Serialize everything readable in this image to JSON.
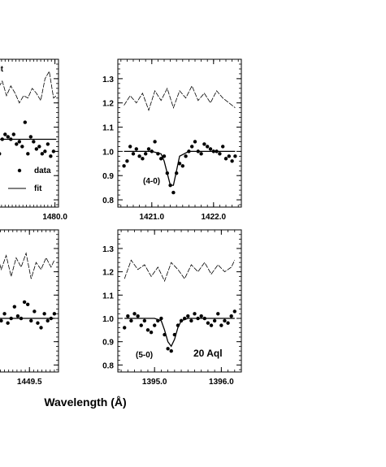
{
  "figure": {
    "xlabel": "Wavelength (Å)"
  },
  "chart_data": [
    {
      "type": "scatter",
      "id": "top-left",
      "xlabel": "",
      "ylabel": "",
      "xlim": [
        1479.0,
        1480.05
      ],
      "ylim": [
        0.77,
        1.38
      ],
      "xticks": [
        1480.0
      ],
      "xtick_labels": [
        "1480.0"
      ],
      "yticks": [],
      "ytick_labels": [],
      "annotations": [
        "data",
        "fit"
      ],
      "legend_partial_top": "it",
      "series": [
        {
          "name": "data",
          "kind": "points",
          "x": [
            1479.18,
            1479.22,
            1479.26,
            1479.3,
            1479.34,
            1479.38,
            1479.42,
            1479.46,
            1479.5,
            1479.54,
            1479.58,
            1479.62,
            1479.66,
            1479.7,
            1479.74,
            1479.78,
            1479.82,
            1479.86,
            1479.9,
            1479.94,
            1479.98
          ],
          "y": [
            1.02,
            0.99,
            1.05,
            1.07,
            1.06,
            1.05,
            1.07,
            1.03,
            1.04,
            1.02,
            1.12,
            0.99,
            1.06,
            1.04,
            1.01,
            1.02,
            0.99,
            1.0,
            1.03,
            0.98,
            1.0
          ]
        },
        {
          "name": "fit",
          "kind": "line",
          "x": [
            1479.14,
            1480.02
          ],
          "y": [
            1.05,
            1.05
          ]
        },
        {
          "name": "spectrum",
          "kind": "line",
          "x": [
            1479.14,
            1479.2,
            1479.26,
            1479.32,
            1479.38,
            1479.44,
            1479.5,
            1479.56,
            1479.62,
            1479.68,
            1479.74,
            1479.8,
            1479.86,
            1479.92,
            1479.98,
            1480.02
          ],
          "y": [
            1.22,
            1.26,
            1.29,
            1.23,
            1.27,
            1.24,
            1.2,
            1.23,
            1.22,
            1.26,
            1.24,
            1.21,
            1.3,
            1.33,
            1.22,
            1.23
          ]
        }
      ]
    },
    {
      "type": "scatter",
      "id": "top-right",
      "xlabel": "",
      "ylabel": "",
      "xlim": [
        1420.45,
        1422.45
      ],
      "ylim": [
        0.77,
        1.38
      ],
      "xticks": [
        1421.0,
        1422.0
      ],
      "xtick_labels": [
        "1421.0",
        "1422.0"
      ],
      "yticks": [
        0.8,
        0.9,
        1.0,
        1.1,
        1.2,
        1.3
      ],
      "ytick_labels": [
        "0.8",
        "0.9",
        "1.0",
        "1.1",
        "1.2",
        "1.3"
      ],
      "annotations": [
        "(4-0)"
      ],
      "series": [
        {
          "name": "data",
          "kind": "points",
          "x": [
            1420.55,
            1420.6,
            1420.65,
            1420.7,
            1420.75,
            1420.8,
            1420.85,
            1420.9,
            1420.95,
            1421.0,
            1421.05,
            1421.1,
            1421.15,
            1421.2,
            1421.25,
            1421.3,
            1421.35,
            1421.4,
            1421.45,
            1421.5,
            1421.55,
            1421.6,
            1421.65,
            1421.7,
            1421.75,
            1421.8,
            1421.85,
            1421.9,
            1421.95,
            1422.0,
            1422.05,
            1422.1,
            1422.15,
            1422.2,
            1422.25,
            1422.3,
            1422.35
          ],
          "y": [
            0.94,
            0.96,
            1.02,
            0.99,
            1.01,
            0.98,
            0.97,
            0.99,
            1.01,
            1.0,
            1.04,
            0.99,
            0.97,
            0.98,
            0.91,
            0.86,
            0.83,
            0.91,
            0.95,
            0.94,
            0.98,
            1.0,
            1.02,
            1.04,
            1.0,
            0.99,
            1.03,
            1.02,
            1.01,
            1.0,
            1.0,
            0.99,
            1.02,
            0.97,
            0.98,
            0.96,
            0.98
          ]
        },
        {
          "name": "fit",
          "kind": "line",
          "x": [
            1420.55,
            1421.0,
            1421.15,
            1421.2,
            1421.25,
            1421.3,
            1421.35,
            1421.4,
            1421.45,
            1421.6,
            1422.35
          ],
          "y": [
            1.0,
            1.0,
            0.99,
            0.96,
            0.91,
            0.86,
            0.86,
            0.92,
            0.98,
            1.0,
            1.0
          ]
        },
        {
          "name": "spectrum",
          "kind": "line",
          "x": [
            1420.55,
            1420.65,
            1420.75,
            1420.85,
            1420.95,
            1421.05,
            1421.15,
            1421.25,
            1421.35,
            1421.45,
            1421.55,
            1421.65,
            1421.75,
            1421.85,
            1421.95,
            1422.05,
            1422.15,
            1422.25,
            1422.35
          ],
          "y": [
            1.19,
            1.23,
            1.2,
            1.24,
            1.17,
            1.25,
            1.21,
            1.26,
            1.18,
            1.25,
            1.22,
            1.27,
            1.21,
            1.24,
            1.2,
            1.25,
            1.22,
            1.2,
            1.18
          ]
        }
      ]
    },
    {
      "type": "scatter",
      "id": "bottom-left",
      "xlabel": "",
      "ylabel": "",
      "xlim": [
        1448.95,
        1449.85
      ],
      "ylim": [
        0.77,
        1.38
      ],
      "xticks": [
        1449.5
      ],
      "xtick_labels": [
        "1449.5"
      ],
      "yticks": [],
      "ytick_labels": [],
      "annotations": [],
      "series": [
        {
          "name": "data",
          "kind": "points",
          "x": [
            1449.0,
            1449.04,
            1449.08,
            1449.12,
            1449.16,
            1449.2,
            1449.24,
            1449.28,
            1449.32,
            1449.36,
            1449.4,
            1449.44,
            1449.48,
            1449.52,
            1449.56,
            1449.6,
            1449.64,
            1449.68,
            1449.72,
            1449.76,
            1449.8
          ],
          "y": [
            1.02,
            0.99,
            1.0,
            1.03,
            0.99,
            1.02,
            0.98,
            1.0,
            1.05,
            1.01,
            1.0,
            1.07,
            1.06,
            0.99,
            1.03,
            0.98,
            0.96,
            1.02,
            0.99,
            1.0,
            1.02
          ]
        },
        {
          "name": "fit",
          "kind": "line",
          "x": [
            1448.98,
            1449.0,
            1449.04,
            1449.08,
            1449.12,
            1449.8
          ],
          "y": [
            0.88,
            0.93,
            0.98,
            1.0,
            1.0,
            1.0
          ]
        },
        {
          "name": "spectrum",
          "kind": "line",
          "x": [
            1448.98,
            1449.04,
            1449.1,
            1449.16,
            1449.22,
            1449.28,
            1449.34,
            1449.4,
            1449.46,
            1449.52,
            1449.58,
            1449.64,
            1449.7,
            1449.76,
            1449.8
          ],
          "y": [
            1.26,
            1.23,
            1.29,
            1.21,
            1.27,
            1.18,
            1.26,
            1.22,
            1.28,
            1.17,
            1.24,
            1.21,
            1.26,
            1.22,
            1.25
          ]
        }
      ]
    },
    {
      "type": "scatter",
      "id": "bottom-right",
      "xlabel": "",
      "ylabel": "",
      "xlim": [
        1394.45,
        1396.3
      ],
      "ylim": [
        0.77,
        1.38
      ],
      "xticks": [
        1395.0,
        1396.0
      ],
      "xtick_labels": [
        "1395.0",
        "1396.0"
      ],
      "yticks": [
        0.8,
        0.9,
        1.0,
        1.1,
        1.2,
        1.3
      ],
      "ytick_labels": [
        "0.8",
        "0.9",
        "1.0",
        "1.1",
        "1.2",
        "1.3"
      ],
      "annotations": [
        "(5-0)",
        "20 Aql"
      ],
      "series": [
        {
          "name": "data",
          "kind": "points",
          "x": [
            1394.55,
            1394.6,
            1394.65,
            1394.7,
            1394.75,
            1394.8,
            1394.85,
            1394.9,
            1394.95,
            1395.0,
            1395.05,
            1395.1,
            1395.15,
            1395.2,
            1395.25,
            1395.3,
            1395.35,
            1395.4,
            1395.45,
            1395.5,
            1395.55,
            1395.6,
            1395.65,
            1395.7,
            1395.75,
            1395.8,
            1395.85,
            1395.9,
            1395.95,
            1396.0,
            1396.05,
            1396.1,
            1396.15,
            1396.2
          ],
          "y": [
            0.96,
            1.01,
            0.99,
            1.02,
            1.01,
            0.97,
            0.99,
            0.95,
            0.94,
            0.97,
            0.99,
            1.0,
            0.93,
            0.87,
            0.86,
            0.93,
            0.97,
            0.99,
            1.0,
            1.01,
            0.99,
            1.02,
            1.0,
            1.01,
            1.0,
            0.98,
            0.97,
            0.99,
            1.02,
            0.97,
            0.99,
            0.98,
            1.01,
            1.03
          ]
        },
        {
          "name": "fit",
          "kind": "line",
          "x": [
            1394.55,
            1395.0,
            1395.1,
            1395.15,
            1395.2,
            1395.25,
            1395.3,
            1395.35,
            1395.4,
            1395.5,
            1396.2
          ],
          "y": [
            1.0,
            1.0,
            0.99,
            0.95,
            0.9,
            0.88,
            0.91,
            0.96,
            0.99,
            1.0,
            1.0
          ]
        },
        {
          "name": "spectrum",
          "kind": "line",
          "x": [
            1394.55,
            1394.65,
            1394.75,
            1394.85,
            1394.95,
            1395.05,
            1395.15,
            1395.25,
            1395.35,
            1395.45,
            1395.55,
            1395.65,
            1395.75,
            1395.85,
            1395.95,
            1396.05,
            1396.15,
            1396.2
          ],
          "y": [
            1.17,
            1.25,
            1.21,
            1.23,
            1.18,
            1.22,
            1.16,
            1.24,
            1.21,
            1.17,
            1.23,
            1.2,
            1.24,
            1.19,
            1.23,
            1.2,
            1.22,
            1.25
          ]
        }
      ]
    }
  ]
}
